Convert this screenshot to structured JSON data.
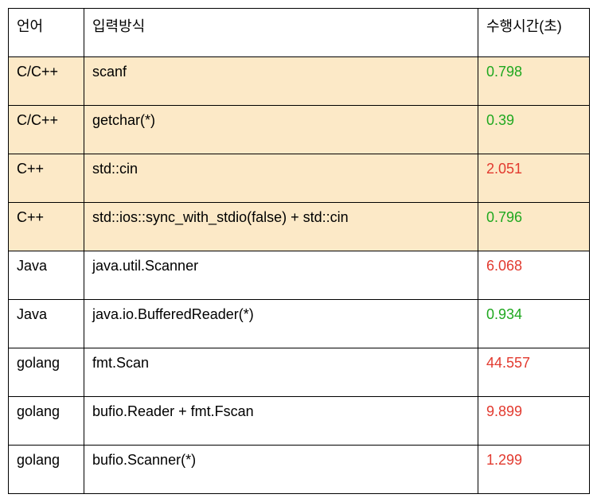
{
  "colors": {
    "highlight_bg": "#fce9c7",
    "good_time": "#1fa81f",
    "bad_time": "#e23a2f",
    "border": "#000000",
    "background": "#ffffff"
  },
  "headers": {
    "language": "언어",
    "input_method": "입력방식",
    "exec_time": "수행시간(초)"
  },
  "rows": [
    {
      "highlight": true,
      "lang": "C/C++",
      "method": "scanf",
      "time": "0.798",
      "time_class": "good"
    },
    {
      "highlight": true,
      "lang": "C/C++",
      "method": "getchar(*)",
      "time": "0.39",
      "time_class": "good"
    },
    {
      "highlight": true,
      "lang": "C++",
      "method": "std::cin",
      "time": "2.051",
      "time_class": "bad"
    },
    {
      "highlight": true,
      "lang": "C++",
      "method": "std::ios::sync_with_stdio(false) + std::cin",
      "time": "0.796",
      "time_class": "good"
    },
    {
      "highlight": false,
      "lang": "Java",
      "method": "java.util.Scanner",
      "time": "6.068",
      "time_class": "bad"
    },
    {
      "highlight": false,
      "lang": "Java",
      "method": "java.io.BufferedReader(*)",
      "time": "0.934",
      "time_class": "good"
    },
    {
      "highlight": false,
      "lang": "golang",
      "method": "fmt.Scan",
      "time": "44.557",
      "time_class": "bad"
    },
    {
      "highlight": false,
      "lang": "golang",
      "method": "bufio.Reader + fmt.Fscan",
      "time": "9.899",
      "time_class": "bad"
    },
    {
      "highlight": false,
      "lang": "golang",
      "method": "bufio.Scanner(*)",
      "time": "1.299",
      "time_class": "bad"
    }
  ]
}
